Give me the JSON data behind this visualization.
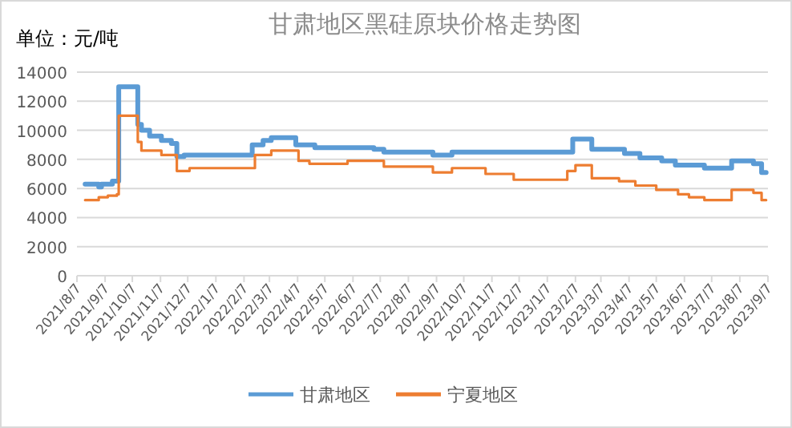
{
  "chart_data": {
    "type": "step",
    "title": "甘肃地区黑硅原块价格走势图",
    "annotations": [
      "单位：元/吨"
    ],
    "xlim": [
      "2021-08-07",
      "2023-09-07"
    ],
    "xticks": [
      {
        "value": "2021-08-07",
        "label": "2021/8/7"
      },
      {
        "value": "2021-09-07",
        "label": "2021/9/7"
      },
      {
        "value": "2021-10-07",
        "label": "2021/10/7"
      },
      {
        "value": "2021-11-07",
        "label": "2021/11/7"
      },
      {
        "value": "2021-12-07",
        "label": "2021/12/7"
      },
      {
        "value": "2022-01-07",
        "label": "2022/1/7"
      },
      {
        "value": "2022-02-07",
        "label": "2022/2/7"
      },
      {
        "value": "2022-03-07",
        "label": "2022/3/7"
      },
      {
        "value": "2022-04-07",
        "label": "2022/4/7"
      },
      {
        "value": "2022-05-07",
        "label": "2022/5/7"
      },
      {
        "value": "2022-06-07",
        "label": "2022/6/7"
      },
      {
        "value": "2022-07-07",
        "label": "2022/7/7"
      },
      {
        "value": "2022-08-07",
        "label": "2022/8/7"
      },
      {
        "value": "2022-09-07",
        "label": "2022/9/7"
      },
      {
        "value": "2022-10-07",
        "label": "2022/10/7"
      },
      {
        "value": "2022-11-07",
        "label": "2022/11/7"
      },
      {
        "value": "2022-12-07",
        "label": "2022/12/7"
      },
      {
        "value": "2023-01-07",
        "label": "2023/1/7"
      },
      {
        "value": "2023-02-07",
        "label": "2023/2/7"
      },
      {
        "value": "2023-03-07",
        "label": "2023/3/7"
      },
      {
        "value": "2023-04-07",
        "label": "2023/4/7"
      },
      {
        "value": "2023-05-07",
        "label": "2023/5/7"
      },
      {
        "value": "2023-06-07",
        "label": "2023/6/7"
      },
      {
        "value": "2023-07-07",
        "label": "2023/7/7"
      },
      {
        "value": "2023-08-07",
        "label": "2023/8/7"
      },
      {
        "value": "2023-09-07",
        "label": "2023/9/7"
      }
    ],
    "ylim": [
      0,
      14000
    ],
    "yticks": [
      0,
      2000,
      4000,
      6000,
      8000,
      10000,
      12000,
      14000
    ],
    "grid": "y",
    "legend": "bottom",
    "series": [
      {
        "name": "甘肃地区",
        "color": "#5b9bd5",
        "x": [
          "2021-08-16",
          "2021-08-31",
          "2021-09-03",
          "2021-09-15",
          "2021-09-22",
          "2021-10-13",
          "2021-10-17",
          "2021-10-26",
          "2021-11-08",
          "2021-11-19",
          "2021-11-25",
          "2021-12-03",
          "2022-02-16",
          "2022-02-28",
          "2022-03-09",
          "2022-04-05",
          "2022-04-26",
          "2022-06-30",
          "2022-07-11",
          "2022-09-03",
          "2022-09-24",
          "2023-02-04",
          "2023-02-25",
          "2023-04-02",
          "2023-04-19",
          "2023-05-13",
          "2023-05-28",
          "2023-06-29",
          "2023-07-29",
          "2023-08-22",
          "2023-08-31",
          "2023-09-05"
        ],
        "values": [
          6300,
          6100,
          6300,
          6500,
          13000,
          10400,
          10000,
          9600,
          9300,
          9100,
          8200,
          8300,
          9000,
          9300,
          9500,
          9000,
          8800,
          8700,
          8500,
          8300,
          8500,
          9400,
          8700,
          8400,
          8100,
          7900,
          7600,
          7400,
          7900,
          7700,
          7100,
          7100
        ]
      },
      {
        "name": "宁夏地区",
        "color": "#ed7d31",
        "x": [
          "2021-08-16",
          "2021-08-31",
          "2021-09-10",
          "2021-09-20",
          "2021-09-22",
          "2021-10-13",
          "2021-10-17",
          "2021-11-08",
          "2021-11-25",
          "2021-12-09",
          "2022-02-19",
          "2022-03-09",
          "2022-04-08",
          "2022-04-20",
          "2022-06-01",
          "2022-07-11",
          "2022-09-03",
          "2022-09-24",
          "2022-10-31",
          "2022-12-01",
          "2023-01-29",
          "2023-02-07",
          "2023-02-25",
          "2023-03-27",
          "2023-04-14",
          "2023-05-07",
          "2023-05-31",
          "2023-06-12",
          "2023-06-29",
          "2023-07-29",
          "2023-08-22",
          "2023-08-31",
          "2023-09-05"
        ],
        "values": [
          5200,
          5400,
          5500,
          5600,
          11000,
          9200,
          8600,
          8300,
          7200,
          7400,
          8300,
          8600,
          7900,
          7700,
          7900,
          7500,
          7100,
          7400,
          7000,
          6600,
          7200,
          7600,
          6700,
          6500,
          6200,
          5900,
          5600,
          5400,
          5200,
          5900,
          5700,
          5200,
          5200
        ]
      }
    ]
  }
}
